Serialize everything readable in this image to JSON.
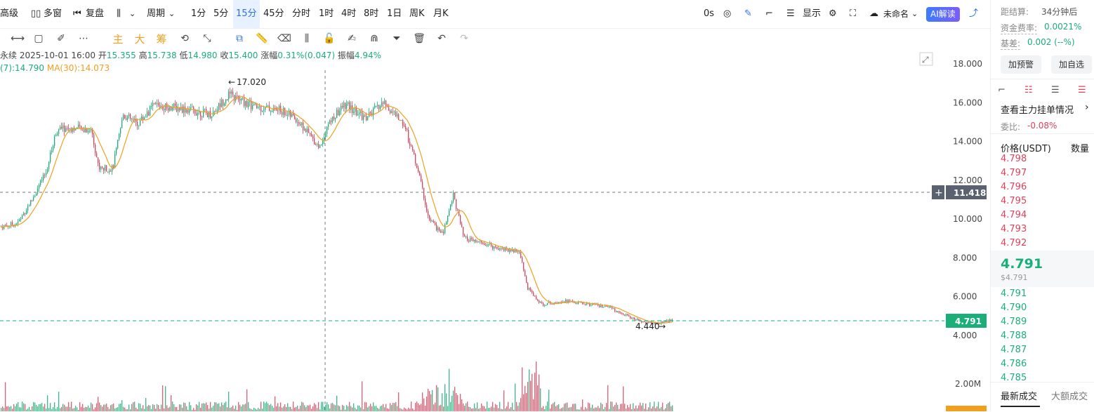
{
  "toolbar": {
    "advanced_label": "高级",
    "multi_window_label": "多窗",
    "replay_label": "复盘",
    "period_label": "周期",
    "intervals": [
      "1分",
      "5分",
      "15分",
      "45分",
      "分时",
      "1时",
      "4时",
      "8时",
      "1日",
      "周K",
      "月K"
    ],
    "selected_interval": "15分",
    "countdown": "0s",
    "display_label": "显示",
    "unnamed_label": "未命名",
    "ai_label": "AI解读"
  },
  "drawing_tools": {
    "main_label": "主",
    "big_label": "大",
    "chip_label": "筹"
  },
  "ohlc_line": {
    "symbol_suffix": "永续",
    "datetime": "2025-10-01 16:00",
    "open_label": "开",
    "open": "15.355",
    "high_label": "高",
    "high": "15.738",
    "low_label": "低",
    "low": "14.980",
    "close_label": "收",
    "close": "15.400",
    "change_label": "涨幅",
    "change": "0.31%(0.047)",
    "amplitude_label": "振幅",
    "amplitude": "4.94%"
  },
  "ma_line": {
    "ma7_text": "(7):14.790",
    "ma30_text": "MA(30):14.073"
  },
  "chart_annotations": {
    "high_marker": "17.020",
    "low_marker": "4.440",
    "crosshair_price": "11.418",
    "last_price_tag": "4.791",
    "volume_tick": "2.00M",
    "y_ticks": [
      "18.000",
      "16.000",
      "14.000",
      "12.000",
      "10.000",
      "8.000",
      "6.000",
      "4.000"
    ]
  },
  "colors": {
    "up": "#1aae78",
    "down": "#e0405a",
    "ma": "#f0a020",
    "accent": "#2d6fe8"
  },
  "right_panel": {
    "settlement_label": "距结算:",
    "settlement_value": "34分钟后",
    "funding_label": "资金费率:",
    "funding_value": "0.0021%",
    "basis_label": "基差:",
    "basis_value": "0.002 (--%)",
    "alert_button": "加预警",
    "watchlist_button": "加自选",
    "orders_link": "查看主力挂单情况",
    "ratio_label": "委比:",
    "ratio_value": "-0.08%",
    "price_header": "价格(USDT)",
    "qty_header": "数量",
    "asks": [
      "4.798",
      "4.797",
      "4.796",
      "4.795",
      "4.794",
      "4.793",
      "4.792"
    ],
    "last_price": "4.791",
    "last_price_usd": "$4.791",
    "bids": [
      "4.791",
      "4.790",
      "4.789",
      "4.788",
      "4.787",
      "4.786",
      "4.785"
    ],
    "tab_latest": "最新成交",
    "tab_large": "大额成交"
  }
}
